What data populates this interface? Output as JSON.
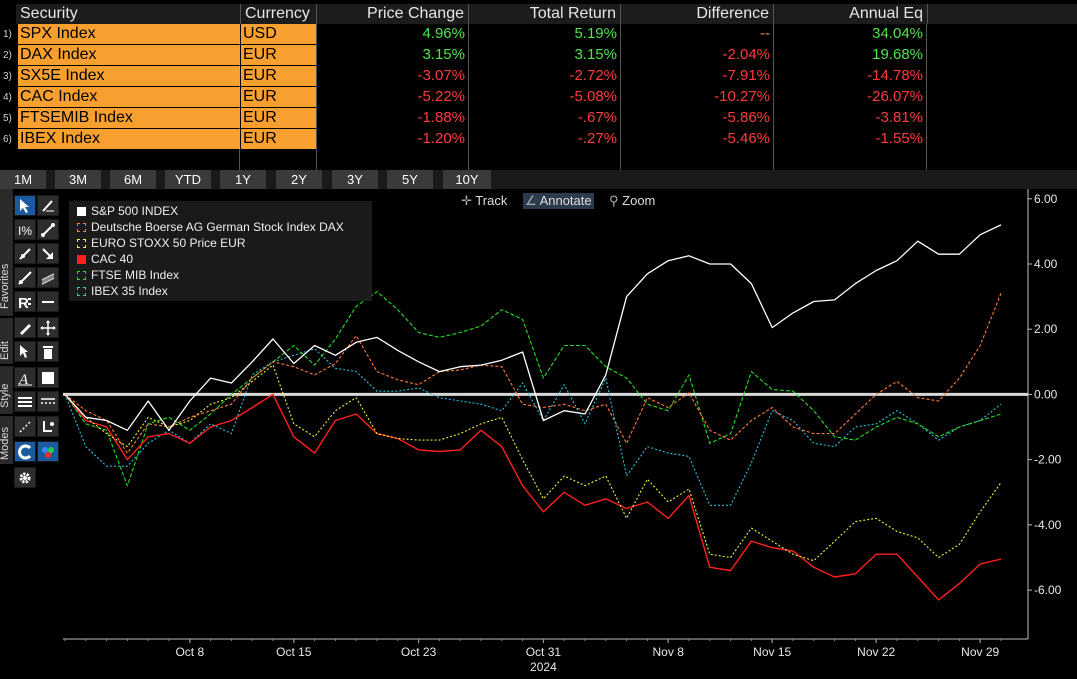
{
  "table": {
    "headers": [
      "Security",
      "Currency",
      "Price Change",
      "Total Return",
      "Difference",
      "Annual Eq"
    ],
    "rows": [
      {
        "num": "1)",
        "security": "SPX Index",
        "currency": "USD",
        "price_change": "4.96%",
        "total_return": "5.19%",
        "difference": "--",
        "annual_eq": "34.04%",
        "colors": [
          "#4ee44e",
          "#4ee44e",
          "#f08060",
          "#4ee44e"
        ]
      },
      {
        "num": "2)",
        "security": "DAX Index",
        "currency": "EUR",
        "price_change": "3.15%",
        "total_return": "3.15%",
        "difference": "-2.04%",
        "annual_eq": "19.68%",
        "colors": [
          "#4ee44e",
          "#4ee44e",
          "#ff3b3b",
          "#4ee44e"
        ]
      },
      {
        "num": "3)",
        "security": "SX5E Index",
        "currency": "EUR",
        "price_change": "-3.07%",
        "total_return": "-2.72%",
        "difference": "-7.91%",
        "annual_eq": "-14.78%",
        "colors": [
          "#ff3b3b",
          "#ff3b3b",
          "#ff3b3b",
          "#ff3b3b"
        ]
      },
      {
        "num": "4)",
        "security": "CAC Index",
        "currency": "EUR",
        "price_change": "-5.22%",
        "total_return": "-5.08%",
        "difference": "-10.27%",
        "annual_eq": "-26.07%",
        "colors": [
          "#ff3b3b",
          "#ff3b3b",
          "#ff3b3b",
          "#ff3b3b"
        ]
      },
      {
        "num": "5)",
        "security": "FTSEMIB Index",
        "currency": "EUR",
        "price_change": "-1.88%",
        "total_return": "-.67%",
        "difference": "-5.86%",
        "annual_eq": "-3.81%",
        "colors": [
          "#ff3b3b",
          "#ff3b3b",
          "#ff3b3b",
          "#ff3b3b"
        ]
      },
      {
        "num": "6)",
        "security": "IBEX Index",
        "currency": "EUR",
        "price_change": "-1.20%",
        "total_return": "-.27%",
        "difference": "-5.46%",
        "annual_eq": "-1.55%",
        "colors": [
          "#ff3b3b",
          "#ff3b3b",
          "#ff3b3b",
          "#ff3b3b"
        ]
      }
    ]
  },
  "periods": [
    "1M",
    "3M",
    "6M",
    "YTD",
    "1Y",
    "2Y",
    "3Y",
    "5Y",
    "10Y"
  ],
  "toolbar": {
    "tabs": [
      "Favorites",
      "Edit",
      "Style",
      "Modes"
    ],
    "icons": [
      "cursor-icon",
      "draw-icon",
      "percent-icon",
      "line-tool-icon",
      "ray-icon",
      "arrow-icon",
      "trend-icon",
      "channel-icon",
      "text-r-icon",
      "hline-icon",
      "pencil-icon",
      "move-icon",
      "pointer-icon",
      "trash-icon",
      "font-icon",
      "color-box-icon",
      "line-weight-icon",
      "line-style-icon",
      "lasso-icon",
      "snap-icon",
      "magnet-icon",
      "palette-icon",
      "gear-icon"
    ]
  },
  "chart_tools": {
    "track": "Track",
    "annotate": "Annotate",
    "zoom": "Zoom"
  },
  "chart_data": {
    "type": "line",
    "x_labels": [
      "Oct 8",
      "Oct 15",
      "Oct 23",
      "Oct 31",
      "Nov 8",
      "Nov 15",
      "Nov 22",
      "Nov 29"
    ],
    "x_label_index": [
      6,
      11,
      17,
      23,
      29,
      34,
      39,
      44
    ],
    "year_label": "2024",
    "yticks": [
      "6.00",
      "4.00",
      "2.00",
      "0.00",
      "-2.00",
      "-4.00",
      "-6.00"
    ],
    "ylim": [
      -7.5,
      6.3
    ],
    "zero_line": 0,
    "series": [
      {
        "name": "S&P 500 INDEX",
        "color": "#ffffff",
        "dash": "none",
        "width": 1.3,
        "values": [
          0,
          -0.7,
          -0.8,
          -1.1,
          -0.2,
          -1.1,
          -0.2,
          0.5,
          0.35,
          1.0,
          1.7,
          0.95,
          1.5,
          1.2,
          1.6,
          1.75,
          1.35,
          1.0,
          0.7,
          0.85,
          0.9,
          1.05,
          1.3,
          -0.8,
          -0.5,
          -0.6,
          0.6,
          3.0,
          3.7,
          4.1,
          4.25,
          4.0,
          4.0,
          3.4,
          2.05,
          2.5,
          2.85,
          2.9,
          3.4,
          3.8,
          4.1,
          4.7,
          4.3,
          4.3,
          4.9,
          5.2
        ]
      },
      {
        "name": "Deutsche Boerse AG German Stock Index DAX",
        "color": "#ff7a33",
        "dash": "3,2",
        "width": 1.1,
        "values": [
          0,
          -0.5,
          -0.8,
          -1.8,
          -0.9,
          -1.0,
          -0.7,
          -0.5,
          -0.3,
          0.5,
          1.0,
          0.85,
          0.6,
          0.95,
          1.8,
          0.7,
          0.45,
          0.3,
          0.7,
          0.75,
          0.9,
          0.85,
          -0.3,
          -0.4,
          -0.3,
          -0.5,
          -0.3,
          -1.5,
          -0.1,
          -0.4,
          0.05,
          -1.1,
          -1.4,
          -0.8,
          -0.4,
          -1.0,
          -1.2,
          -1.2,
          -0.6,
          0.0,
          0.4,
          -0.1,
          -0.2,
          0.5,
          1.5,
          3.1
        ]
      },
      {
        "name": "EURO STOXX 50 Price EUR",
        "color": "#f0f040",
        "dash": "2,2",
        "width": 1.1,
        "values": [
          0,
          -0.7,
          -1.2,
          -1.6,
          -0.7,
          -1.0,
          -0.8,
          -0.3,
          -0.1,
          0.4,
          0.9,
          -0.9,
          -1.3,
          -0.5,
          -0.1,
          -1.2,
          -1.35,
          -1.4,
          -1.4,
          -1.2,
          -0.9,
          -0.7,
          -2.0,
          -3.2,
          -2.5,
          -2.8,
          -2.5,
          -3.8,
          -2.6,
          -3.3,
          -2.9,
          -4.9,
          -5.0,
          -4.1,
          -4.5,
          -4.9,
          -5.1,
          -4.5,
          -3.9,
          -3.8,
          -4.2,
          -4.4,
          -5.0,
          -4.6,
          -3.6,
          -2.7
        ]
      },
      {
        "name": "CAC 40",
        "color": "#ff1f1f",
        "dash": "none",
        "width": 1.4,
        "values": [
          0,
          -0.8,
          -1.0,
          -2.0,
          -1.3,
          -1.2,
          -1.5,
          -1.0,
          -0.8,
          -0.4,
          0.0,
          -1.3,
          -1.8,
          -0.8,
          -0.6,
          -1.2,
          -1.35,
          -1.7,
          -1.75,
          -1.7,
          -1.1,
          -1.6,
          -2.8,
          -3.6,
          -3.0,
          -3.4,
          -3.2,
          -3.5,
          -3.3,
          -3.8,
          -3.1,
          -5.3,
          -5.4,
          -4.5,
          -4.7,
          -4.8,
          -5.3,
          -5.6,
          -5.5,
          -4.9,
          -4.9,
          -5.6,
          -6.3,
          -5.8,
          -5.2,
          -5.05
        ]
      },
      {
        "name": "FTSE MIB Index",
        "color": "#22dd22",
        "dash": "4,2",
        "width": 1.1,
        "values": [
          0,
          -0.9,
          -1.1,
          -2.8,
          -0.9,
          -0.7,
          -1.1,
          -0.6,
          0.0,
          0.5,
          1.0,
          1.5,
          0.9,
          1.7,
          2.7,
          3.15,
          2.6,
          1.9,
          1.75,
          1.9,
          2.1,
          2.6,
          2.3,
          0.5,
          1.5,
          1.5,
          0.85,
          0.5,
          -0.3,
          -0.5,
          0.6,
          -1.5,
          -1.2,
          0.7,
          0.15,
          0.1,
          -0.5,
          -1.3,
          -1.4,
          -1.0,
          -0.7,
          -0.9,
          -1.3,
          -1.0,
          -0.8,
          -0.6
        ]
      },
      {
        "name": "IBEX 35 Index",
        "color": "#2ac0e0",
        "dash": "2,2",
        "width": 1.1,
        "values": [
          0,
          -1.6,
          -2.2,
          -2.2,
          -1.5,
          -1.1,
          -1.5,
          -0.9,
          -1.2,
          0.6,
          1.0,
          1.2,
          1.4,
          0.8,
          0.7,
          0.1,
          0.1,
          0.2,
          -0.1,
          -0.2,
          -0.3,
          -0.5,
          0.35,
          -0.8,
          0.3,
          -0.9,
          0.5,
          -2.5,
          -1.6,
          -1.8,
          -1.9,
          -3.4,
          -3.4,
          -2.1,
          -0.5,
          -0.8,
          -1.5,
          -1.6,
          -1.0,
          -0.9,
          -0.5,
          -0.9,
          -1.4,
          -1.0,
          -0.8,
          -0.3
        ]
      }
    ]
  }
}
